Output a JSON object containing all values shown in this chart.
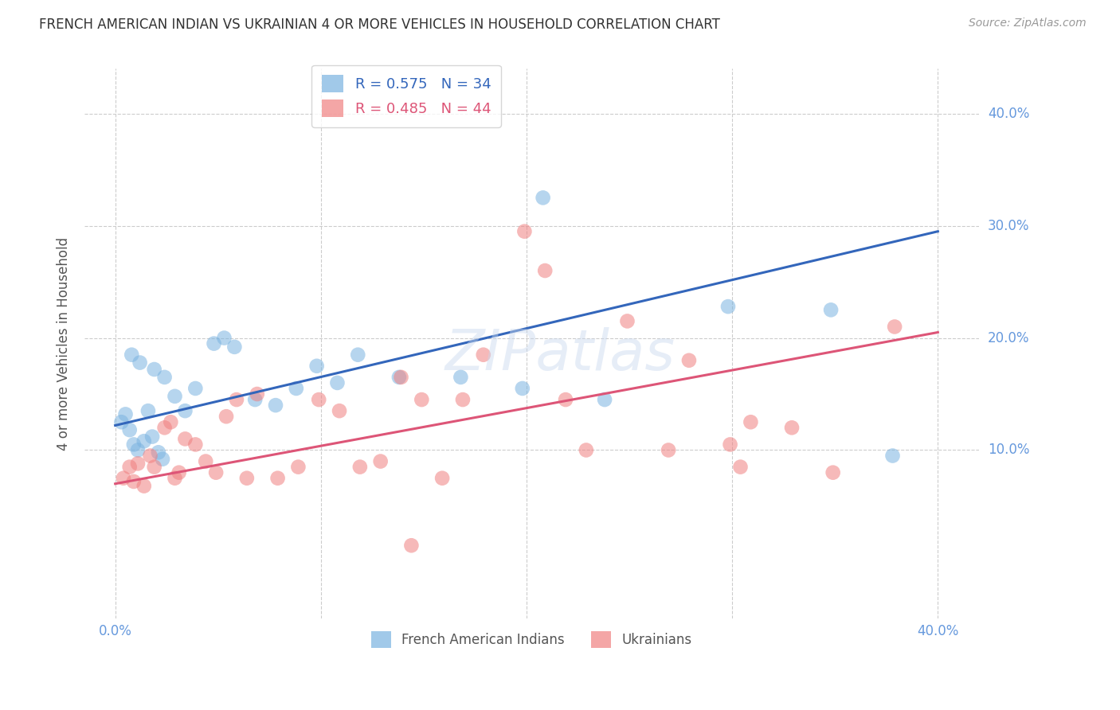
{
  "title": "FRENCH AMERICAN INDIAN VS UKRAINIAN 4 OR MORE VEHICLES IN HOUSEHOLD CORRELATION CHART",
  "source": "Source: ZipAtlas.com",
  "ylabel": "4 or more Vehicles in Household",
  "ytick_labels": [
    "10.0%",
    "20.0%",
    "30.0%",
    "40.0%"
  ],
  "ytick_values": [
    10,
    20,
    30,
    40
  ],
  "xtick_values": [
    0,
    10,
    20,
    30,
    40
  ],
  "xlim": [
    -1.5,
    42
  ],
  "ylim": [
    -5,
    44
  ],
  "french_color": "#7ab3e0",
  "ukrainian_color": "#f08080",
  "french_scatter": [
    [
      0.3,
      12.5
    ],
    [
      0.5,
      13.2
    ],
    [
      0.7,
      11.8
    ],
    [
      0.9,
      10.5
    ],
    [
      1.1,
      10.0
    ],
    [
      1.4,
      10.8
    ],
    [
      1.6,
      13.5
    ],
    [
      1.8,
      11.2
    ],
    [
      2.1,
      9.8
    ],
    [
      2.3,
      9.2
    ],
    [
      0.8,
      18.5
    ],
    [
      1.2,
      17.8
    ],
    [
      1.9,
      17.2
    ],
    [
      2.4,
      16.5
    ],
    [
      2.9,
      14.8
    ],
    [
      3.4,
      13.5
    ],
    [
      3.9,
      15.5
    ],
    [
      4.8,
      19.5
    ],
    [
      5.3,
      20.0
    ],
    [
      5.8,
      19.2
    ],
    [
      6.8,
      14.5
    ],
    [
      7.8,
      14.0
    ],
    [
      8.8,
      15.5
    ],
    [
      9.8,
      17.5
    ],
    [
      10.8,
      16.0
    ],
    [
      11.8,
      18.5
    ],
    [
      13.8,
      16.5
    ],
    [
      16.8,
      16.5
    ],
    [
      19.8,
      15.5
    ],
    [
      20.8,
      32.5
    ],
    [
      23.8,
      14.5
    ],
    [
      29.8,
      22.8
    ],
    [
      34.8,
      22.5
    ],
    [
      37.8,
      9.5
    ]
  ],
  "ukrainian_scatter": [
    [
      0.4,
      7.5
    ],
    [
      0.7,
      8.5
    ],
    [
      0.9,
      7.2
    ],
    [
      1.1,
      8.8
    ],
    [
      1.4,
      6.8
    ],
    [
      1.7,
      9.5
    ],
    [
      1.9,
      8.5
    ],
    [
      2.4,
      12.0
    ],
    [
      2.7,
      12.5
    ],
    [
      2.9,
      7.5
    ],
    [
      3.1,
      8.0
    ],
    [
      3.4,
      11.0
    ],
    [
      3.9,
      10.5
    ],
    [
      4.4,
      9.0
    ],
    [
      4.9,
      8.0
    ],
    [
      5.4,
      13.0
    ],
    [
      5.9,
      14.5
    ],
    [
      6.4,
      7.5
    ],
    [
      6.9,
      15.0
    ],
    [
      7.9,
      7.5
    ],
    [
      8.9,
      8.5
    ],
    [
      9.9,
      14.5
    ],
    [
      10.9,
      13.5
    ],
    [
      11.9,
      8.5
    ],
    [
      12.9,
      9.0
    ],
    [
      13.9,
      16.5
    ],
    [
      14.9,
      14.5
    ],
    [
      15.9,
      7.5
    ],
    [
      16.9,
      14.5
    ],
    [
      17.9,
      18.5
    ],
    [
      19.9,
      29.5
    ],
    [
      20.9,
      26.0
    ],
    [
      21.9,
      14.5
    ],
    [
      22.9,
      10.0
    ],
    [
      24.9,
      21.5
    ],
    [
      26.9,
      10.0
    ],
    [
      27.9,
      18.0
    ],
    [
      29.9,
      10.5
    ],
    [
      30.4,
      8.5
    ],
    [
      30.9,
      12.5
    ],
    [
      14.4,
      1.5
    ],
    [
      32.9,
      12.0
    ],
    [
      34.9,
      8.0
    ],
    [
      37.9,
      21.0
    ]
  ],
  "french_line": {
    "x0": 0,
    "y0": 12.2,
    "x1": 40,
    "y1": 29.5
  },
  "ukrainian_line": {
    "x0": 0,
    "y0": 7.0,
    "x1": 40,
    "y1": 20.5
  },
  "background_color": "#ffffff",
  "grid_color": "#cccccc",
  "title_color": "#333333",
  "tick_label_color": "#6699dd",
  "french_line_color": "#3366bb",
  "ukrainian_line_color": "#dd5577"
}
